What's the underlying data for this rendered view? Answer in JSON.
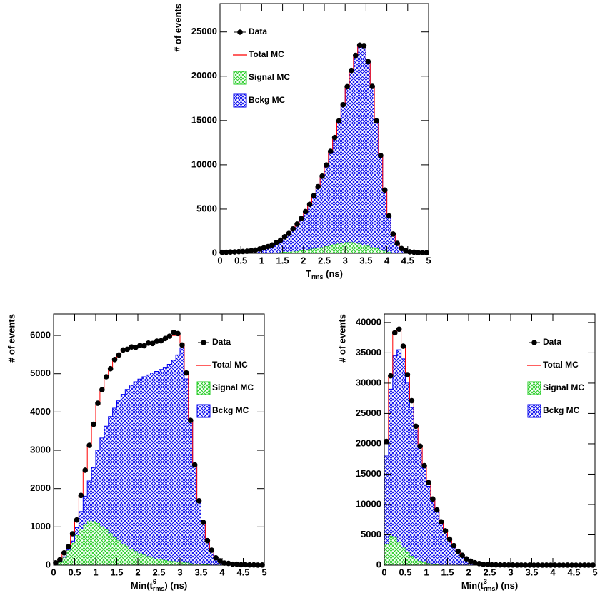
{
  "chart_data": [
    {
      "type": "histogram",
      "xlabel": [
        {
          "text": "T"
        },
        {
          "sub": "rms"
        },
        {
          "text": " (ns)"
        }
      ],
      "ylabel": "# of events",
      "bins": [
        0,
        0.1,
        0.2,
        0.3,
        0.4,
        0.5,
        0.6,
        0.7,
        0.8,
        0.9,
        1,
        1.1,
        1.2,
        1.3,
        1.4,
        1.5,
        1.6,
        1.7,
        1.8,
        1.9,
        2,
        2.1,
        2.2,
        2.3,
        2.4,
        2.5,
        2.6,
        2.7,
        2.8,
        2.9,
        3,
        3.1,
        3.2,
        3.3,
        3.4,
        3.5,
        3.6,
        3.7,
        3.8,
        3.9,
        4,
        4.1,
        4.2,
        4.3,
        4.4,
        4.5,
        4.6,
        4.7,
        4.8,
        4.9,
        5
      ],
      "xlim": [
        0,
        5
      ],
      "xticks": [
        0,
        0.5,
        1,
        1.5,
        2,
        2.5,
        3,
        3.5,
        4,
        4.5,
        5
      ],
      "ylim": [
        0,
        28200
      ],
      "yticks": [
        0,
        5000,
        10000,
        15000,
        20000,
        25000
      ],
      "legend": "upper left",
      "series": [
        {
          "name": "Data",
          "color": "#000000",
          "style": "points",
          "values": [
            110,
            115,
            150,
            155,
            185,
            210,
            240,
            310,
            370,
            490,
            610,
            760,
            940,
            1210,
            1490,
            1870,
            2240,
            2760,
            3310,
            3940,
            4720,
            5540,
            6520,
            7530,
            8720,
            9980,
            11520,
            13080,
            14950,
            16780,
            18820,
            20650,
            22350,
            23500,
            23450,
            21650,
            18850,
            14950,
            11050,
            7150,
            4230,
            2180,
            1120,
            540,
            310,
            170,
            130,
            80,
            75,
            55
          ]
        },
        {
          "name": "Total MC",
          "color": "#ff0000",
          "style": "line",
          "values": [
            100,
            120,
            140,
            160,
            180,
            200,
            250,
            300,
            380,
            480,
            600,
            750,
            950,
            1200,
            1500,
            1850,
            2250,
            2750,
            3300,
            3950,
            4700,
            5550,
            6500,
            7550,
            8700,
            10000,
            11500,
            13100,
            14900,
            16800,
            18800,
            20700,
            22300,
            23400,
            23300,
            21700,
            18800,
            15000,
            11000,
            7200,
            4200,
            2200,
            1100,
            550,
            300,
            180,
            120,
            90,
            70,
            60
          ]
        },
        {
          "name": "Signal MC",
          "color": "#22cc22",
          "style": "hatched",
          "values": [
            10,
            10,
            10,
            10,
            10,
            15,
            20,
            25,
            30,
            40,
            50,
            65,
            80,
            100,
            120,
            150,
            180,
            220,
            260,
            310,
            370,
            440,
            520,
            610,
            700,
            800,
            900,
            1000,
            1100,
            1200,
            1250,
            1250,
            1200,
            1100,
            980,
            840,
            700,
            550,
            400,
            270,
            170,
            100,
            55,
            30,
            15,
            8,
            5,
            4,
            3,
            2
          ]
        },
        {
          "name": "Bckg MC",
          "color": "#0000ee",
          "style": "hatched",
          "values": [
            90,
            110,
            130,
            150,
            170,
            185,
            230,
            275,
            350,
            440,
            550,
            685,
            870,
            1100,
            1380,
            1700,
            2070,
            2530,
            3040,
            3640,
            4330,
            5110,
            5980,
            6940,
            8000,
            9200,
            10600,
            12100,
            13800,
            15600,
            17550,
            19450,
            21100,
            22300,
            22320,
            20860,
            18100,
            14450,
            10600,
            6930,
            4030,
            2100,
            1045,
            520,
            285,
            172,
            115,
            86,
            67,
            58
          ]
        }
      ]
    },
    {
      "type": "histogram",
      "xlabel": [
        {
          "text": "Min(t"
        },
        {
          "sup": "6"
        },
        {
          "sub": "rms"
        },
        {
          "text": ") (ns)"
        }
      ],
      "ylabel": "# of events",
      "bins": [
        0,
        0.1,
        0.2,
        0.3,
        0.4,
        0.5,
        0.6,
        0.7,
        0.8,
        0.9,
        1,
        1.1,
        1.2,
        1.3,
        1.4,
        1.5,
        1.6,
        1.7,
        1.8,
        1.9,
        2,
        2.1,
        2.2,
        2.3,
        2.4,
        2.5,
        2.6,
        2.7,
        2.8,
        2.9,
        3,
        3.1,
        3.2,
        3.3,
        3.4,
        3.5,
        3.6,
        3.7,
        3.8,
        3.9,
        4,
        4.1,
        4.2,
        4.3,
        4.4,
        4.5,
        4.6,
        4.7,
        4.8,
        4.9,
        5
      ],
      "xlim": [
        0,
        5
      ],
      "xticks": [
        0,
        0.5,
        1,
        1.5,
        2,
        2.5,
        3,
        3.5,
        4,
        4.5,
        5
      ],
      "ylim": [
        0,
        6560
      ],
      "yticks": [
        0,
        1000,
        2000,
        3000,
        4000,
        5000,
        6000
      ],
      "legend": "upper right",
      "series": [
        {
          "name": "Data",
          "color": "#000000",
          "style": "points",
          "values": [
            60,
            140,
            320,
            480,
            820,
            1180,
            1820,
            2480,
            3130,
            3680,
            4230,
            4580,
            4920,
            5130,
            5370,
            5490,
            5620,
            5640,
            5700,
            5690,
            5740,
            5730,
            5800,
            5790,
            5850,
            5860,
            5920,
            5980,
            6080,
            6050,
            5750,
            5020,
            3780,
            2620,
            1680,
            1120,
            640,
            390,
            190,
            110,
            55,
            45,
            25,
            25,
            10,
            12,
            5,
            6,
            2,
            3
          ]
        },
        {
          "name": "Total MC",
          "color": "#ff0000",
          "style": "line",
          "values": [
            50,
            150,
            300,
            500,
            800,
            1200,
            1800,
            2500,
            3100,
            3700,
            4200,
            4600,
            4900,
            5150,
            5350,
            5500,
            5600,
            5650,
            5680,
            5700,
            5720,
            5750,
            5780,
            5800,
            5830,
            5850,
            5900,
            5950,
            6000,
            6000,
            5800,
            5000,
            3800,
            2600,
            1700,
            1100,
            650,
            380,
            200,
            100,
            60,
            40,
            30,
            20,
            15,
            10,
            8,
            5,
            3,
            2
          ]
        },
        {
          "name": "Signal MC",
          "color": "#22cc22",
          "style": "hatched",
          "values": [
            20,
            80,
            200,
            380,
            580,
            780,
            950,
            1080,
            1150,
            1150,
            1100,
            1020,
            930,
            830,
            730,
            640,
            560,
            490,
            420,
            360,
            310,
            270,
            230,
            200,
            170,
            150,
            130,
            115,
            100,
            90,
            80,
            65,
            50,
            40,
            30,
            20,
            15,
            10,
            6,
            4,
            3,
            2,
            2,
            1,
            1,
            1,
            1,
            0,
            0,
            0
          ]
        },
        {
          "name": "Bckg MC",
          "color": "#0000ee",
          "style": "hatched",
          "values": [
            5,
            10,
            20,
            30,
            50,
            200,
            450,
            720,
            1050,
            1400,
            1900,
            2300,
            2700,
            3050,
            3370,
            3650,
            3900,
            4100,
            4280,
            4430,
            4550,
            4650,
            4740,
            4820,
            4890,
            4960,
            5040,
            5130,
            5250,
            5400,
            5600,
            4800,
            3700,
            2550,
            1650,
            1070,
            630,
            370,
            190,
            95,
            57,
            38,
            28,
            19,
            14,
            9,
            7,
            5,
            3,
            2
          ]
        }
      ]
    },
    {
      "type": "histogram",
      "xlabel": [
        {
          "text": "Min(t"
        },
        {
          "sup": "3"
        },
        {
          "sub": "rms"
        },
        {
          "text": ") (ns)"
        }
      ],
      "ylabel": "# of events",
      "bins": [
        0,
        0.1,
        0.2,
        0.3,
        0.4,
        0.5,
        0.6,
        0.7,
        0.8,
        0.9,
        1,
        1.1,
        1.2,
        1.3,
        1.4,
        1.5,
        1.6,
        1.7,
        1.8,
        1.9,
        2,
        2.1,
        2.2,
        2.3,
        2.4,
        2.5,
        2.6,
        2.7,
        2.8,
        2.9,
        3,
        3.1,
        3.2,
        3.3,
        3.4,
        3.5,
        3.6,
        3.7,
        3.8,
        3.9,
        4,
        4.1,
        4.2,
        4.3,
        4.4,
        4.5,
        4.6,
        4.7,
        4.8,
        4.9,
        5
      ],
      "xlim": [
        0,
        5
      ],
      "xticks": [
        0,
        0.5,
        1,
        1.5,
        2,
        2.5,
        3,
        3.5,
        4,
        4.5,
        5
      ],
      "ylim": [
        0,
        41400
      ],
      "yticks": [
        0,
        5000,
        10000,
        15000,
        20000,
        25000,
        30000,
        35000,
        40000
      ],
      "legend": "upper right",
      "series": [
        {
          "name": "Data",
          "color": "#000000",
          "style": "points",
          "values": [
            20400,
            31200,
            38300,
            38900,
            36100,
            31400,
            27100,
            22900,
            19600,
            16400,
            13600,
            10900,
            9100,
            7150,
            5650,
            4280,
            3220,
            2280,
            1620,
            1040,
            660,
            390,
            260,
            140,
            110,
            60,
            55,
            35,
            40,
            20,
            25,
            10,
            15,
            5,
            10,
            0,
            5,
            0,
            5,
            0,
            5,
            0,
            0,
            5,
            0,
            0,
            0,
            5,
            0,
            0
          ]
        },
        {
          "name": "Total MC",
          "color": "#ff0000",
          "style": "line",
          "values": [
            20500,
            31000,
            38500,
            39000,
            36000,
            31500,
            27000,
            23000,
            19500,
            16500,
            13500,
            11000,
            9000,
            7200,
            5600,
            4300,
            3200,
            2300,
            1600,
            1050,
            650,
            400,
            250,
            150,
            100,
            70,
            50,
            40,
            30,
            25,
            20,
            15,
            12,
            10,
            8,
            6,
            5,
            4,
            3,
            3,
            2,
            2,
            2,
            1,
            1,
            1,
            1,
            1,
            0,
            0
          ]
        },
        {
          "name": "Signal MC",
          "color": "#22cc22",
          "style": "hatched",
          "values": [
            3500,
            4800,
            4600,
            3800,
            2900,
            2100,
            1500,
            1000,
            700,
            450,
            300,
            200,
            130,
            80,
            50,
            30,
            20,
            10,
            5,
            3,
            2,
            1,
            1,
            0,
            0,
            0,
            0,
            0,
            0,
            0,
            0,
            0,
            0,
            0,
            0,
            0,
            0,
            0,
            0,
            0,
            0,
            0,
            0,
            0,
            0,
            0,
            0,
            0,
            0,
            0
          ]
        },
        {
          "name": "Bckg MC",
          "color": "#0000ee",
          "style": "hatched",
          "values": [
            14500,
            24200,
            29900,
            31700,
            31100,
            27900,
            24500,
            21300,
            18300,
            15550,
            12700,
            10500,
            8670,
            6920,
            5450,
            4170,
            3080,
            2240,
            1545,
            1017,
            628,
            389,
            244,
            148,
            98,
            69,
            49,
            39,
            29,
            24,
            20,
            15,
            12,
            10,
            8,
            6,
            5,
            4,
            3,
            3,
            2,
            2,
            2,
            1,
            1,
            1,
            1,
            1,
            0,
            0
          ]
        }
      ]
    }
  ]
}
